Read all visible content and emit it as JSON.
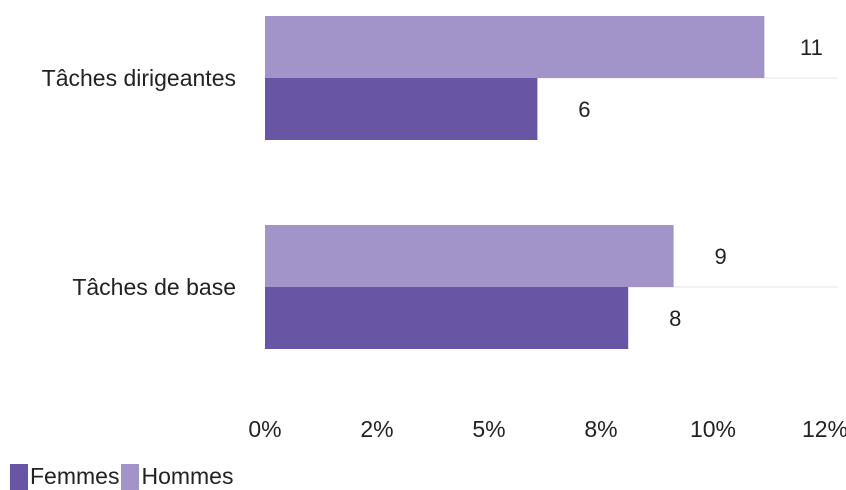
{
  "chart_data": {
    "type": "bar",
    "orientation": "horizontal",
    "categories": [
      "Tâches dirigeantes",
      "Tâches de base"
    ],
    "series": [
      {
        "name": "Hommes",
        "color": "#a294c8",
        "values": [
          11,
          9
        ]
      },
      {
        "name": "Femmes",
        "color": "#6856a5",
        "values": [
          6,
          8
        ]
      }
    ],
    "x_ticks": [
      "0%",
      "2%",
      "5%",
      "8%",
      "10%",
      "12%"
    ],
    "xlim": [
      0,
      12
    ],
    "grid": true,
    "legend_position": "bottom-left"
  },
  "legend": [
    {
      "label": "Femmes",
      "color": "#6856a5"
    },
    {
      "label": "Hommes",
      "color": "#a294c8"
    }
  ]
}
